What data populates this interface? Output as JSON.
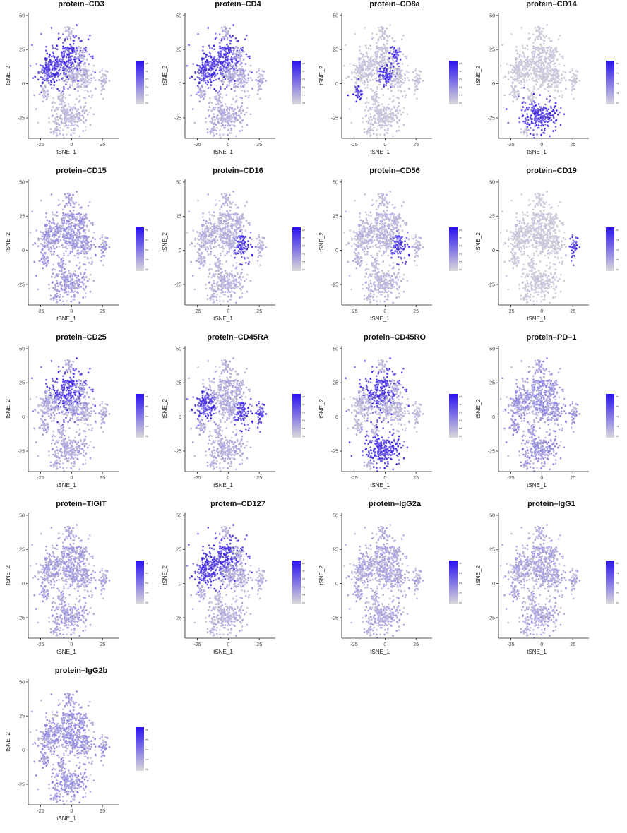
{
  "colors": {
    "low": "#d9d9d9",
    "high": "#2a12f0",
    "axis": "#222222"
  },
  "chart_data": [
    {
      "type": "scatter",
      "title": "protein–CD3",
      "xlabel": "tSNE_1",
      "ylabel": "tSNE_2",
      "xticks": [
        "-25",
        "0",
        "25"
      ],
      "yticks": [
        "50",
        "25",
        "0",
        "-25"
      ],
      "xlim": [
        -35,
        38
      ],
      "ylim": [
        -40,
        52
      ],
      "colorbar_ticks": [
        "0",
        "1",
        "2",
        "3",
        "4",
        "5"
      ],
      "high": [
        "left-mid",
        "upper-main"
      ],
      "base": 0.15
    },
    {
      "type": "scatter",
      "title": "protein–CD4",
      "xlabel": "tSNE_1",
      "ylabel": "tSNE_2",
      "xticks": [
        "-25",
        "0",
        "25"
      ],
      "yticks": [
        "50",
        "25",
        "0",
        "-25"
      ],
      "xlim": [
        -35,
        38
      ],
      "ylim": [
        -40,
        52
      ],
      "colorbar_ticks": [
        "0",
        "1",
        "2",
        "3",
        "4",
        "5"
      ],
      "high": [
        "left-mid",
        "upper-main"
      ],
      "base": 0.2
    },
    {
      "type": "scatter",
      "title": "protein–CD8a",
      "xlabel": "tSNE_1",
      "ylabel": "tSNE_2",
      "xticks": [
        "-25",
        "0",
        "25"
      ],
      "yticks": [
        "50",
        "25",
        "0",
        "-25"
      ],
      "xlim": [
        -35,
        38
      ],
      "ylim": [
        -40,
        52
      ],
      "colorbar_ticks": [
        "0",
        "1",
        "2",
        "3",
        "4",
        "5"
      ],
      "high": [
        "left-blob",
        "center-blob",
        "right-tip"
      ],
      "base": 0.1
    },
    {
      "type": "scatter",
      "title": "protein–CD14",
      "xlabel": "tSNE_1",
      "ylabel": "tSNE_2",
      "xticks": [
        "-25",
        "0",
        "25"
      ],
      "yticks": [
        "50",
        "25",
        "0",
        "-25"
      ],
      "xlim": [
        -35,
        38
      ],
      "ylim": [
        -40,
        52
      ],
      "colorbar_ticks": [
        "0",
        "1",
        "2",
        "3",
        "4"
      ],
      "high": [
        "bottom"
      ],
      "base": 0.08
    },
    {
      "type": "scatter",
      "title": "protein–CD15",
      "xlabel": "tSNE_1",
      "ylabel": "tSNE_2",
      "xticks": [
        "-25",
        "0",
        "25"
      ],
      "yticks": [
        "50",
        "25",
        "0",
        "-25"
      ],
      "xlim": [
        -35,
        38
      ],
      "ylim": [
        -40,
        52
      ],
      "colorbar_ticks": [
        "0",
        "1",
        "2",
        "3",
        "4"
      ],
      "high": [],
      "base": 0.28
    },
    {
      "type": "scatter",
      "title": "protein–CD16",
      "xlabel": "tSNE_1",
      "ylabel": "tSNE_2",
      "xticks": [
        "-25",
        "0",
        "25"
      ],
      "yticks": [
        "50",
        "25",
        "0",
        "-25"
      ],
      "xlim": [
        -35,
        38
      ],
      "ylim": [
        -40,
        52
      ],
      "colorbar_ticks": [
        "0",
        "1",
        "2",
        "3",
        "4",
        "5"
      ],
      "high": [
        "right-blob"
      ],
      "base": 0.18
    },
    {
      "type": "scatter",
      "title": "protein–CD56",
      "xlabel": "tSNE_1",
      "ylabel": "tSNE_2",
      "xticks": [
        "-25",
        "0",
        "25"
      ],
      "yticks": [
        "50",
        "25",
        "0",
        "-25"
      ],
      "xlim": [
        -35,
        38
      ],
      "ylim": [
        -40,
        52
      ],
      "colorbar_ticks": [
        "0",
        "1",
        "2",
        "3",
        "4",
        "5"
      ],
      "high": [
        "right-blob"
      ],
      "base": 0.16
    },
    {
      "type": "scatter",
      "title": "protein–CD19",
      "xlabel": "tSNE_1",
      "ylabel": "tSNE_2",
      "xticks": [
        "-25",
        "0",
        "25"
      ],
      "yticks": [
        "50",
        "25",
        "0",
        "-25"
      ],
      "xlim": [
        -35,
        38
      ],
      "ylim": [
        -40,
        52
      ],
      "colorbar_ticks": [
        "0",
        "1",
        "2",
        "3",
        "4"
      ],
      "high": [
        "far-right"
      ],
      "base": 0.08
    },
    {
      "type": "scatter",
      "title": "protein–CD25",
      "xlabel": "tSNE_1",
      "ylabel": "tSNE_2",
      "xticks": [
        "-25",
        "0",
        "25"
      ],
      "yticks": [
        "50",
        "25",
        "0",
        "-25"
      ],
      "xlim": [
        -35,
        38
      ],
      "ylim": [
        -40,
        52
      ],
      "colorbar_ticks": [
        "0",
        "1",
        "2",
        "3",
        "4"
      ],
      "high": [
        "upper-main"
      ],
      "base": 0.22
    },
    {
      "type": "scatter",
      "title": "protein–CD45RA",
      "xlabel": "tSNE_1",
      "ylabel": "tSNE_2",
      "xticks": [
        "-25",
        "0",
        "25"
      ],
      "yticks": [
        "50",
        "25",
        "0",
        "-25"
      ],
      "xlim": [
        -35,
        38
      ],
      "ylim": [
        -40,
        52
      ],
      "colorbar_ticks": [
        "0",
        "1",
        "2",
        "3",
        "4",
        "5"
      ],
      "high": [
        "left-mid",
        "right-blob",
        "far-right"
      ],
      "base": 0.2
    },
    {
      "type": "scatter",
      "title": "protein–CD45RO",
      "xlabel": "tSNE_1",
      "ylabel": "tSNE_2",
      "xticks": [
        "-25",
        "0",
        "25"
      ],
      "yticks": [
        "50",
        "25",
        "0",
        "-25"
      ],
      "xlim": [
        -35,
        38
      ],
      "ylim": [
        -40,
        52
      ],
      "colorbar_ticks": [
        "0",
        "1",
        "2",
        "3",
        "4",
        "5"
      ],
      "high": [
        "upper-main",
        "bottom"
      ],
      "base": 0.15
    },
    {
      "type": "scatter",
      "title": "protein–PD–1",
      "xlabel": "tSNE_1",
      "ylabel": "tSNE_2",
      "xticks": [
        "-25",
        "0",
        "25"
      ],
      "yticks": [
        "50",
        "25",
        "0",
        "-25"
      ],
      "xlim": [
        -35,
        38
      ],
      "ylim": [
        -40,
        52
      ],
      "colorbar_ticks": [
        "0",
        "1",
        "2",
        "3",
        "4"
      ],
      "high": [],
      "base": 0.3
    },
    {
      "type": "scatter",
      "title": "protein–TIGIT",
      "xlabel": "tSNE_1",
      "ylabel": "tSNE_2",
      "xticks": [
        "-25",
        "0",
        "25"
      ],
      "yticks": [
        "50",
        "25",
        "0",
        "-25"
      ],
      "xlim": [
        -35,
        38
      ],
      "ylim": [
        -40,
        52
      ],
      "colorbar_ticks": [
        "0",
        "1",
        "2",
        "3",
        "4"
      ],
      "high": [],
      "base": 0.25
    },
    {
      "type": "scatter",
      "title": "protein–CD127",
      "xlabel": "tSNE_1",
      "ylabel": "tSNE_2",
      "xticks": [
        "-25",
        "0",
        "25"
      ],
      "yticks": [
        "50",
        "25",
        "0",
        "-25"
      ],
      "xlim": [
        -35,
        38
      ],
      "ylim": [
        -40,
        52
      ],
      "colorbar_ticks": [
        "0",
        "1",
        "2",
        "3",
        "4",
        "5"
      ],
      "high": [
        "upper-main",
        "left-mid"
      ],
      "base": 0.18
    },
    {
      "type": "scatter",
      "title": "protein–IgG2a",
      "xlabel": "tSNE_1",
      "ylabel": "tSNE_2",
      "xticks": [
        "-25",
        "0",
        "25"
      ],
      "yticks": [
        "50",
        "25",
        "0",
        "-25"
      ],
      "xlim": [
        -35,
        38
      ],
      "ylim": [
        -40,
        52
      ],
      "colorbar_ticks": [
        "0",
        "1",
        "2",
        "3",
        "4"
      ],
      "high": [],
      "base": 0.22
    },
    {
      "type": "scatter",
      "title": "protein–IgG1",
      "xlabel": "tSNE_1",
      "ylabel": "tSNE_2",
      "xticks": [
        "-25",
        "0",
        "25"
      ],
      "yticks": [
        "50",
        "25",
        "0",
        "-25"
      ],
      "xlim": [
        -35,
        38
      ],
      "ylim": [
        -40,
        52
      ],
      "colorbar_ticks": [
        "0",
        "1",
        "2",
        "3",
        "4"
      ],
      "high": [],
      "base": 0.22
    },
    {
      "type": "scatter",
      "title": "protein–IgG2b",
      "xlabel": "tSNE_1",
      "ylabel": "tSNE_2",
      "xticks": [
        "-25",
        "0",
        "25"
      ],
      "yticks": [
        "50",
        "25",
        "0",
        "-25"
      ],
      "xlim": [
        -35,
        38
      ],
      "ylim": [
        -40,
        52
      ],
      "colorbar_ticks": [
        "0",
        "1",
        "2",
        "3",
        "4"
      ],
      "high": [],
      "base": 0.3
    }
  ]
}
